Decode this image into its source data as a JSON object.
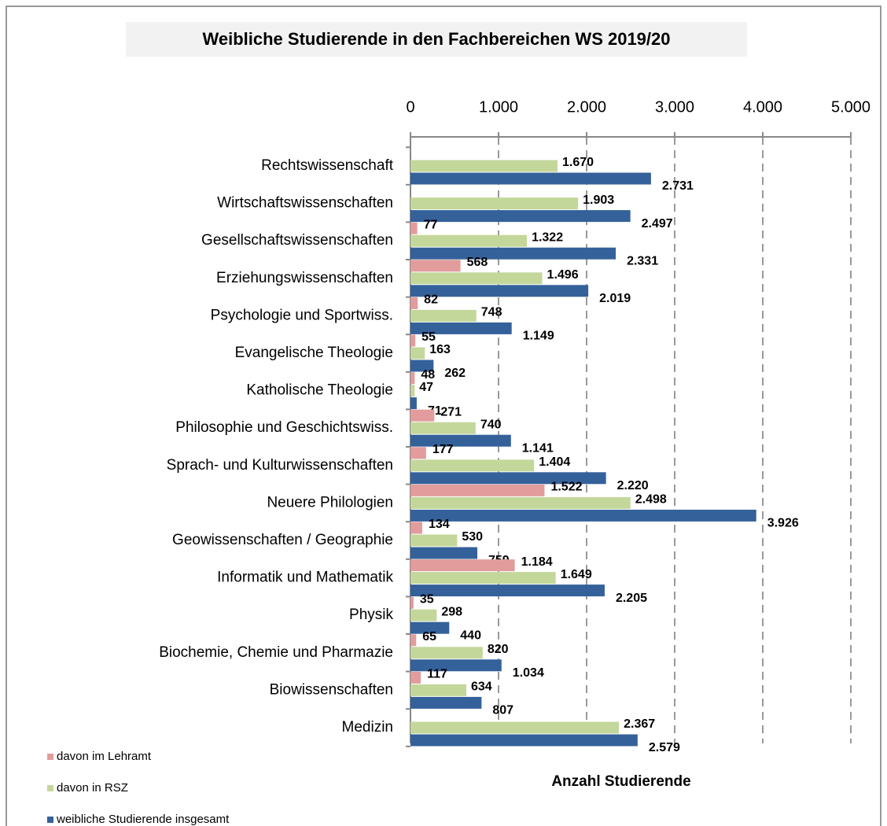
{
  "chart_data": {
    "type": "hbar",
    "title": "Weibliche Studierende in den Fachbereichen WS 2019/20",
    "x_label": "Anzahl Studierende",
    "categories": [
      "Rechtswissenschaft",
      "Wirtschaftswissenschaften",
      "Gesellschaftswissenschaften",
      "Erziehungswissenschaften",
      "Psychologie und Sportwiss.",
      "Evangelische Theologie",
      "Katholische Theologie",
      "Philosophie und Geschichtswiss.",
      "Sprach- und Kulturwissenschaften",
      "Neuere Philologien",
      "Geowissenschaften / Geographie",
      "Informatik und Mathematik",
      "Physik",
      "Biochemie, Chemie und Pharmazie",
      "Biowissenschaften",
      "Medizin"
    ],
    "series": [
      {
        "name": "davon im Lehramt",
        "color": "#e29c9c",
        "values": [
          null,
          null,
          77,
          568,
          82,
          55,
          48,
          271,
          177,
          1522,
          134,
          1184,
          35,
          65,
          117,
          null
        ],
        "value_labels": [
          null,
          null,
          "77",
          "568",
          "82",
          "55",
          "48",
          "271",
          "177",
          "1.522",
          "134",
          "1.184",
          "35",
          "65",
          "117",
          null
        ]
      },
      {
        "name": "davon in RSZ",
        "color": "#c4d79b",
        "values": [
          1670,
          1903,
          1322,
          1496,
          748,
          163,
          47,
          740,
          1404,
          2498,
          530,
          1649,
          298,
          820,
          634,
          2367
        ],
        "value_labels": [
          "1.670",
          "1.903",
          "1.322",
          "1.496",
          "748",
          "163",
          "47",
          "740",
          "1.404",
          "2.498",
          "530",
          "1.649",
          "298",
          "820",
          "634",
          "2.367"
        ]
      },
      {
        "name": "weibliche Studierende insgesamt",
        "color": "#34619a",
        "values": [
          2731,
          2497,
          2331,
          2019,
          1149,
          262,
          71,
          1141,
          2220,
          3926,
          759,
          2205,
          440,
          1034,
          807,
          2579
        ],
        "value_labels": [
          "2.731",
          "2.497",
          "2.331",
          "2.019",
          "1.149",
          "262",
          "71",
          "1.141",
          "2.220",
          "3.926",
          "759",
          "2.205",
          "440",
          "1.034",
          "807",
          "2.579"
        ]
      }
    ],
    "xlim": [
      0,
      5000
    ],
    "xticks": [
      0,
      {
        "value": 1000,
        "label": "1.000"
      },
      {
        "value": 2000,
        "label": "2.000"
      },
      {
        "value": 3000,
        "label": "3.000"
      },
      {
        "value": 4000,
        "label": "4.000"
      },
      {
        "value": 5000,
        "label": "5.000"
      }
    ],
    "grid": true,
    "legend": "bottom-left"
  }
}
